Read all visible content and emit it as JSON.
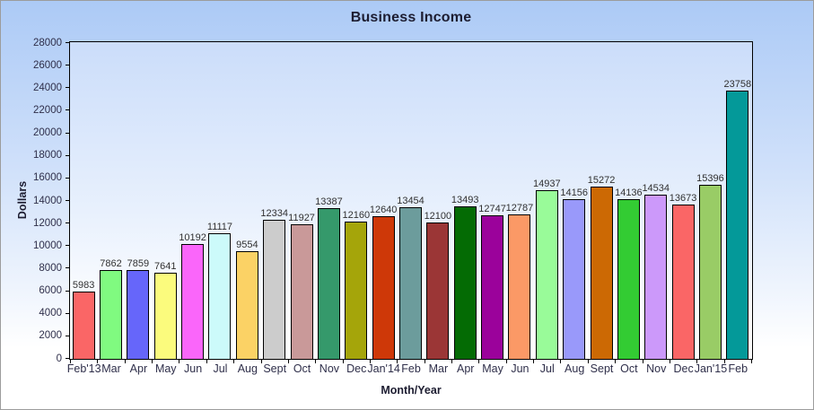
{
  "chart_data": {
    "type": "bar",
    "title": "Business Income",
    "xlabel": "Month/Year",
    "ylabel": "Dollars",
    "ylim": [
      0,
      28000
    ],
    "ytick_step": 2000,
    "grid": false,
    "legend_position": "none",
    "value_labels_shown": true,
    "categories": [
      "Feb'13",
      "Mar",
      "Apr",
      "May",
      "Jun",
      "Jul",
      "Aug",
      "Sept",
      "Oct",
      "Nov",
      "Dec",
      "Jan'14",
      "Feb",
      "Mar",
      "Apr",
      "May",
      "Jun",
      "Jul",
      "Aug",
      "Sept",
      "Oct",
      "Nov",
      "Dec",
      "Jan'15",
      "Feb"
    ],
    "values": [
      5983,
      7862,
      7859,
      7641,
      10192,
      11117,
      9554,
      12334,
      11927,
      13387,
      12160,
      12640,
      13454,
      12100,
      13493,
      12747,
      12787,
      14937,
      14156,
      15272,
      14136,
      14534,
      13673,
      15396,
      23758
    ],
    "bar_colors": [
      "#fa6666",
      "#80fa80",
      "#6666fa",
      "#fbfb7d",
      "#fa66fa",
      "#ccfafa",
      "#fbd265",
      "#cccccc",
      "#c99999",
      "#35996b",
      "#a5a50a",
      "#ce3808",
      "#6c9c9c",
      "#9b3636",
      "#046b04",
      "#9b029b",
      "#fb9966",
      "#99fb99",
      "#9999fa",
      "#cc6904",
      "#33cc33",
      "#cc99fa",
      "#fa6666",
      "#99cc66",
      "#049999"
    ]
  },
  "styles": {
    "window_border_color": "#9c9c9c",
    "background_top_color": "#accaf6",
    "plot_background_top_color": "#cbddfa",
    "axis_color": "#000000",
    "bar_border_color": "#000000",
    "title_color": "#1d1d31",
    "tick_label_color": "#2f2f4a",
    "value_label_color": "#303030"
  }
}
